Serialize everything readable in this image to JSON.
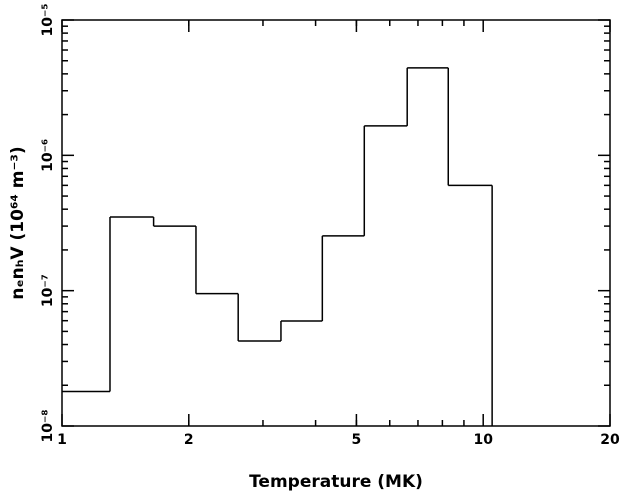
{
  "chart_data": {
    "type": "histogram",
    "x_label": "Temperature (MK)",
    "y_label": "nₑnₕV (10⁶⁴ m⁻³)",
    "bins": [
      1,
      1.3,
      1.65,
      2.08,
      2.62,
      3.31,
      4.15,
      5.22,
      6.6,
      8.26,
      10.5
    ],
    "values": [
      1.8e-08,
      3.5e-07,
      3e-07,
      9.5e-08,
      4.25e-08,
      5.97e-08,
      2.54e-07,
      1.65e-06,
      4.43e-06,
      6e-07
    ],
    "color": "#000000",
    "xscale": "log",
    "yscale": "log",
    "xlim": [
      1,
      20
    ],
    "xticks": [
      1,
      2,
      5,
      10,
      20
    ],
    "ylim": [
      1e-08,
      1e-05
    ],
    "yticks": [
      {
        "value": 1e-08,
        "label": "10⁻⁸"
      },
      {
        "value": 1e-07,
        "label": "10⁻⁷"
      },
      {
        "value": 1e-06,
        "label": "10⁻⁶"
      },
      {
        "value": 1e-05,
        "label": "10⁻⁵"
      }
    ]
  }
}
